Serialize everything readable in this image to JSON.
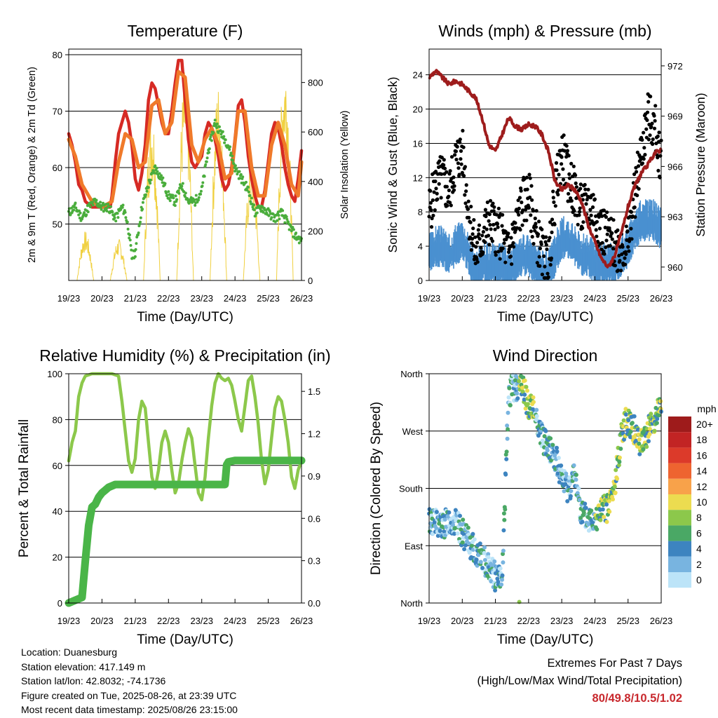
{
  "chart_data": [
    {
      "type": "line",
      "title": "Temperature (F)",
      "xlabel": "Time (Day/UTC)",
      "ylabel": "2m & 9m T (Red, Orange) & 2m Td (Green)",
      "y2label": "Solar Insolation (Yellow)",
      "xticks": [
        "19/23",
        "20/23",
        "21/23",
        "22/23",
        "23/23",
        "24/23",
        "25/23",
        "26/23"
      ],
      "xlim": [
        0,
        7
      ],
      "ylim": [
        40,
        81
      ],
      "yticks": [
        50,
        60,
        70,
        80
      ],
      "y2lim": [
        0,
        935
      ],
      "y2ticks": [
        0,
        200,
        400,
        600,
        800
      ],
      "grid": true,
      "series": [
        {
          "name": "2m T",
          "color": "#d62a24",
          "x": [
            0,
            0.1,
            0.2,
            0.3,
            0.4,
            0.5,
            0.7,
            0.9,
            1.0,
            1.1,
            1.25,
            1.3,
            1.4,
            1.5,
            1.6,
            1.7,
            1.8,
            1.9,
            2.0,
            2.1,
            2.2,
            2.3,
            2.4,
            2.5,
            2.6,
            2.7,
            2.8,
            2.9,
            3.0,
            3.1,
            3.2,
            3.3,
            3.4,
            3.5,
            3.6,
            3.7,
            3.8,
            3.9,
            4.0,
            4.1,
            4.2,
            4.3,
            4.4,
            4.5,
            4.6,
            4.7,
            4.8,
            4.9,
            5.0,
            5.1,
            5.2,
            5.3,
            5.4,
            5.5,
            5.6,
            5.7,
            5.8,
            5.9,
            6.0,
            6.1,
            6.2,
            6.3,
            6.4,
            6.5,
            6.6,
            6.7,
            6.8,
            6.9,
            7.0
          ],
          "y": [
            66,
            64,
            61,
            57,
            56,
            54,
            53,
            53,
            53,
            53,
            53,
            55,
            61,
            66,
            68,
            70,
            68,
            64,
            58,
            56,
            59,
            64,
            72,
            75,
            74,
            71,
            68,
            66,
            66,
            70,
            75,
            79,
            79,
            72,
            65,
            61,
            60,
            61,
            62,
            66,
            68,
            67,
            65,
            62,
            58,
            56,
            57,
            60,
            65,
            71,
            72,
            68,
            62,
            58,
            55,
            53,
            53,
            56,
            61,
            66,
            68,
            67,
            64,
            60,
            57,
            55,
            54,
            58,
            63
          ]
        },
        {
          "name": "9m T",
          "color": "#f07a2a",
          "x": [
            0,
            0.2,
            0.4,
            0.7,
            1.0,
            1.3,
            1.5,
            1.7,
            1.9,
            2.1,
            2.3,
            2.5,
            2.7,
            2.9,
            3.1,
            3.3,
            3.5,
            3.7,
            3.9,
            4.1,
            4.3,
            4.5,
            4.7,
            4.9,
            5.1,
            5.3,
            5.5,
            5.7,
            5.9,
            6.1,
            6.3,
            6.5,
            6.7,
            6.9,
            7.0
          ],
          "y": [
            65,
            62,
            57,
            54,
            53,
            54,
            61,
            66,
            65,
            60,
            61,
            71,
            72,
            66,
            68,
            77,
            76,
            64,
            61,
            65,
            67,
            64,
            58,
            59,
            70,
            70,
            60,
            55,
            55,
            64,
            68,
            64,
            57,
            55,
            61
          ]
        },
        {
          "name": "2m Td",
          "color": "#4aad3c",
          "x": [
            0,
            0.2,
            0.4,
            0.6,
            0.8,
            1.0,
            1.2,
            1.3,
            1.4,
            1.5,
            1.6,
            1.7,
            1.8,
            1.9,
            2.0,
            2.1,
            2.2,
            2.4,
            2.6,
            2.8,
            3.0,
            3.2,
            3.4,
            3.6,
            3.8,
            4.0,
            4.2,
            4.4,
            4.6,
            4.8,
            5.0,
            5.2,
            5.4,
            5.6,
            5.8,
            6.0,
            6.2,
            6.4,
            6.6,
            6.8,
            7.0
          ],
          "y": [
            52,
            53,
            51,
            53,
            54,
            53,
            53,
            52,
            51,
            52,
            53,
            52,
            49,
            44,
            45,
            49,
            53,
            57,
            60,
            58,
            55,
            54,
            57,
            54,
            54,
            56,
            63,
            68,
            66,
            64,
            60,
            58,
            56,
            52,
            53,
            52,
            51,
            52,
            50,
            48,
            47
          ]
        }
      ],
      "series_y2": [
        {
          "name": "Solar Insolation",
          "color": "#f0d040",
          "peaks_day": [
            0.5,
            1.5,
            2.5,
            3.5,
            4.5,
            5.5,
            6.5
          ],
          "peaks_value": [
            200,
            170,
            700,
            860,
            800,
            500,
            920
          ]
        }
      ]
    },
    {
      "type": "scatter",
      "title": "Winds (mph) & Pressure (mb)",
      "xlabel": "Time (Day/UTC)",
      "ylabel": "Sonic Wind & Gust (Blue, Black)",
      "y2label": "Station Pressure (Maroon)",
      "xticks": [
        "19/23",
        "20/23",
        "21/23",
        "22/23",
        "23/23",
        "24/23",
        "25/23",
        "26/23"
      ],
      "xlim": [
        0,
        7
      ],
      "ylim": [
        0,
        27
      ],
      "yticks": [
        0,
        4,
        8,
        12,
        16,
        20,
        24
      ],
      "y2lim": [
        959.2,
        973
      ],
      "y2ticks": [
        960,
        963,
        966,
        969,
        972
      ],
      "grid": true,
      "series": [
        {
          "name": "Gust",
          "color": "#000000",
          "x": [
            0,
            0.2,
            0.4,
            0.6,
            0.8,
            1.0,
            1.2,
            1.4,
            1.6,
            1.8,
            2.0,
            2.2,
            2.4,
            2.6,
            2.8,
            3.0,
            3.2,
            3.4,
            3.6,
            3.8,
            4.0,
            4.2,
            4.4,
            4.6,
            4.8,
            5.0,
            5.2,
            5.4,
            5.6,
            5.8,
            6.0,
            6.2,
            6.4,
            6.6,
            6.8,
            7.0
          ],
          "y": [
            8,
            11,
            12,
            10,
            14,
            15,
            8,
            3,
            5,
            7,
            6,
            5,
            3,
            6,
            9,
            10,
            6,
            3,
            2,
            10,
            15,
            12,
            10,
            8,
            9,
            8,
            6,
            5,
            4,
            4,
            4,
            10,
            15,
            19,
            18,
            14
          ]
        },
        {
          "name": "Wind",
          "color": "#4a90d0",
          "x": [
            0,
            0.2,
            0.4,
            0.6,
            0.8,
            1.0,
            1.2,
            1.4,
            1.6,
            1.8,
            2.0,
            2.2,
            2.4,
            2.6,
            2.8,
            3.0,
            3.2,
            3.4,
            3.6,
            3.8,
            4.0,
            4.2,
            4.4,
            4.6,
            4.8,
            5.0,
            5.2,
            5.4,
            5.6,
            5.8,
            6.0,
            6.2,
            6.4,
            6.6,
            6.8,
            7.0
          ],
          "y": [
            3,
            4,
            4,
            3,
            4,
            5,
            3,
            1,
            2,
            2,
            2,
            2,
            1,
            2,
            3,
            3,
            2,
            1,
            1,
            3,
            5,
            5,
            4,
            3,
            3,
            2,
            2,
            2,
            2,
            3,
            4,
            6,
            7,
            7,
            7,
            6
          ]
        },
        {
          "name": "Pressure",
          "color": "#9e1c1c",
          "axis": "y2",
          "x": [
            0,
            0.2,
            0.4,
            0.6,
            0.8,
            1.0,
            1.2,
            1.4,
            1.6,
            1.8,
            2.0,
            2.2,
            2.4,
            2.6,
            2.8,
            3.0,
            3.2,
            3.4,
            3.6,
            3.8,
            4.0,
            4.2,
            4.4,
            4.6,
            4.8,
            5.0,
            5.2,
            5.4,
            5.6,
            5.8,
            6.0,
            6.2,
            6.4,
            6.6,
            6.8,
            7.0
          ],
          "y": [
            971.3,
            971.7,
            971.3,
            970.9,
            971.1,
            970.9,
            970.5,
            970.1,
            968.9,
            967.3,
            966.9,
            967.9,
            968.9,
            968.4,
            968.2,
            968.5,
            968.4,
            967.9,
            966.9,
            965.1,
            964.6,
            964.9,
            964.6,
            963.9,
            962.5,
            961.5,
            960.5,
            960.0,
            960.7,
            962.0,
            963.6,
            964.8,
            965.6,
            966.1,
            966.8,
            967.0
          ]
        }
      ]
    },
    {
      "type": "line",
      "title": "Relative Humidity (%) & Precipitation (in)",
      "xlabel": "Time (Day/UTC)",
      "ylabel": "Percent & Total Rainfall",
      "xticks": [
        "19/23",
        "20/23",
        "21/23",
        "22/23",
        "23/23",
        "24/23",
        "25/23",
        "26/23"
      ],
      "xlim": [
        0,
        7
      ],
      "ylim": [
        0,
        100
      ],
      "yticks": [
        0,
        20,
        40,
        60,
        80,
        100
      ],
      "y2lim": [
        0,
        1.625
      ],
      "y2ticks": [
        "0.0",
        "0.3",
        "0.6",
        "0.9",
        "1.2",
        "1.5"
      ],
      "grid": true,
      "series": [
        {
          "name": "Relative Humidity",
          "color": "#8cc84b",
          "x": [
            0,
            0.1,
            0.2,
            0.3,
            0.4,
            0.5,
            0.7,
            1.0,
            1.3,
            1.5,
            1.6,
            1.7,
            1.8,
            1.9,
            2.0,
            2.1,
            2.2,
            2.3,
            2.4,
            2.5,
            2.6,
            2.7,
            2.8,
            2.9,
            3.0,
            3.1,
            3.2,
            3.3,
            3.4,
            3.5,
            3.6,
            3.7,
            3.8,
            3.9,
            4.0,
            4.1,
            4.2,
            4.3,
            4.4,
            4.5,
            4.6,
            4.7,
            4.8,
            4.9,
            5.0,
            5.1,
            5.2,
            5.3,
            5.4,
            5.5,
            5.6,
            5.7,
            5.8,
            5.9,
            6.0,
            6.1,
            6.2,
            6.3,
            6.4,
            6.5,
            6.6,
            6.7,
            6.8,
            6.9,
            7.0
          ],
          "y": [
            62,
            70,
            75,
            90,
            96,
            99,
            100,
            100,
            100,
            99,
            88,
            75,
            62,
            57,
            63,
            80,
            88,
            85,
            70,
            55,
            50,
            58,
            70,
            75,
            70,
            58,
            48,
            52,
            62,
            70,
            76,
            72,
            60,
            48,
            45,
            55,
            72,
            86,
            96,
            100,
            98,
            97,
            98,
            95,
            88,
            80,
            75,
            86,
            97,
            99,
            90,
            78,
            62,
            52,
            58,
            72,
            85,
            90,
            88,
            80,
            70,
            55,
            50,
            58,
            62
          ]
        },
        {
          "name": "Total Rainfall",
          "color": "#4ab548",
          "axis": "y2",
          "x": [
            0,
            0.2,
            0.4,
            0.5,
            0.6,
            0.7,
            0.8,
            0.9,
            1.0,
            1.1,
            1.2,
            1.4,
            1.6,
            2.0,
            2.5,
            3.0,
            3.5,
            4.0,
            4.5,
            4.7,
            4.75,
            4.8,
            5.0,
            5.5,
            6.0,
            6.5,
            7.0
          ],
          "y": [
            0,
            0.02,
            0.04,
            0.3,
            0.55,
            0.68,
            0.7,
            0.75,
            0.78,
            0.8,
            0.82,
            0.84,
            0.84,
            0.84,
            0.84,
            0.84,
            0.84,
            0.84,
            0.84,
            0.84,
            0.98,
            1.0,
            1.01,
            1.01,
            1.01,
            1.01,
            1.01
          ]
        }
      ]
    },
    {
      "type": "scatter",
      "title": "Wind Direction",
      "xlabel": "Time (Day/UTC)",
      "ylabel": "Direction (Colored By Speed)",
      "xticks": [
        "19/23",
        "20/23",
        "21/23",
        "22/23",
        "23/23",
        "24/23",
        "25/23",
        "26/23"
      ],
      "xlim": [
        0,
        7
      ],
      "ylim": [
        0,
        360
      ],
      "yticks": [
        "North",
        "East",
        "South",
        "West",
        "North"
      ],
      "ytick_values": [
        0,
        90,
        180,
        270,
        360
      ],
      "grid": true,
      "colorbar_title": "mph",
      "colorbar_labels": [
        "20+",
        "18",
        "16",
        "14",
        "12",
        "10",
        "8",
        "6",
        "4",
        "2",
        "0"
      ],
      "colorbar_colors": [
        "#9e1b1b",
        "#c22424",
        "#dc3a2a",
        "#ee6430",
        "#f8a24a",
        "#ecdc50",
        "#8cc84b",
        "#4aa865",
        "#3d84c0",
        "#78b4e0",
        "#bce4f8"
      ],
      "series": [
        {
          "name": "Direction",
          "x": [
            0,
            0.2,
            0.4,
            0.6,
            0.8,
            1.0,
            1.2,
            1.4,
            1.6,
            1.8,
            2.0,
            2.2,
            2.4,
            2.6,
            2.8,
            3.0,
            3.2,
            3.4,
            3.6,
            3.8,
            4.0,
            4.2,
            4.4,
            4.6,
            4.8,
            5.0,
            5.2,
            5.4,
            5.6,
            5.8,
            6.0,
            6.2,
            6.4,
            6.6,
            6.8,
            7.0
          ],
          "y": [
            130,
            125,
            120,
            130,
            125,
            110,
            95,
            80,
            70,
            60,
            40,
            35,
            330,
            340,
            345,
            310,
            300,
            260,
            245,
            230,
            195,
            180,
            200,
            140,
            130,
            135,
            145,
            150,
            180,
            270,
            290,
            270,
            250,
            270,
            290,
            310
          ]
        }
      ]
    }
  ],
  "footer": {
    "location": "Location: Duanesburg",
    "elevation": "Station elevation: 417.149 m",
    "latlon": "Station lat/lon: 42.8032; -74.1736",
    "created": "Figure created on Tue, 2025-08-26, at 23:39 UTC",
    "recent": "Most recent data timestamp: 2025/08/26 23:15:00"
  },
  "extremes": {
    "title": "Extremes For Past 7 Days",
    "subtitle": "(High/Low/Max Wind/Total Precipitation)",
    "values": "80/49.8/10.5/1.02"
  }
}
